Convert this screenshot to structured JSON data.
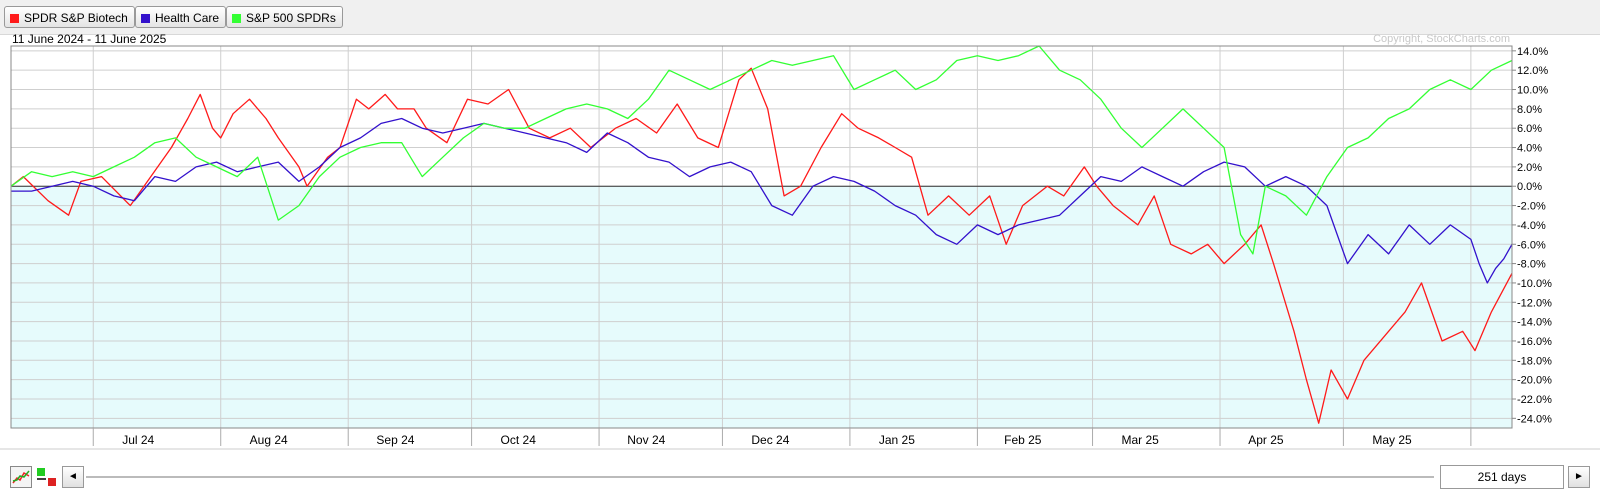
{
  "legend": [
    {
      "name": "SPDR S&P Biotech",
      "color": "#ff1a1a"
    },
    {
      "name": "Health Care",
      "color": "#3311cc"
    },
    {
      "name": "S&P 500 SPDRs",
      "color": "#33ff33"
    }
  ],
  "header": {
    "date_range": "11 June 2024 - 11 June 2025",
    "copyright": "Copyright, StockCharts.com"
  },
  "footer": {
    "days_label": "251 days",
    "scroll_left": "◄",
    "scroll_right": "►"
  },
  "icons": {
    "performance_tool": "performance-chart-icon",
    "color_tool": "color-legend-icon"
  },
  "chart_data": {
    "type": "line",
    "xlabel": "",
    "ylabel": "",
    "y_unit": "%",
    "ylim": [
      -25,
      14.5
    ],
    "y_ticks": [
      "14.0%",
      "12.0%",
      "10.0%",
      "8.0%",
      "6.0%",
      "4.0%",
      "2.0%",
      "0.0%",
      "-2.0%",
      "-4.0%",
      "-6.0%",
      "-8.0%",
      "-10.0%",
      "-12.0%",
      "-14.0%",
      "-16.0%",
      "-18.0%",
      "-20.0%",
      "-22.0%",
      "-24.0%"
    ],
    "x_months": [
      "Jul 24",
      "Aug 24",
      "Sep 24",
      "Oct 24",
      "Nov 24",
      "Dec 24",
      "Jan 25",
      "Feb 25",
      "Mar 25",
      "Apr 25",
      "May 25"
    ],
    "grid": true,
    "baseline": 0,
    "trading_days": 251,
    "series": [
      {
        "name": "SPDR S&P Biotech",
        "color": "#ff1a1a",
        "points": [
          [
            "2024-06-11",
            0
          ],
          [
            "2024-06-14",
            1
          ],
          [
            "2024-06-20",
            -1.5
          ],
          [
            "2024-06-25",
            -3
          ],
          [
            "2024-06-28",
            0.5
          ],
          [
            "2024-07-03",
            1
          ],
          [
            "2024-07-10",
            -2
          ],
          [
            "2024-07-15",
            1
          ],
          [
            "2024-07-20",
            4
          ],
          [
            "2024-07-24",
            7
          ],
          [
            "2024-07-27",
            9.5
          ],
          [
            "2024-07-30",
            6
          ],
          [
            "2024-08-01",
            5
          ],
          [
            "2024-08-04",
            7.5
          ],
          [
            "2024-08-08",
            9
          ],
          [
            "2024-08-12",
            7
          ],
          [
            "2024-08-15",
            5
          ],
          [
            "2024-08-20",
            2
          ],
          [
            "2024-08-22",
            0
          ],
          [
            "2024-08-27",
            3
          ],
          [
            "2024-08-30",
            4
          ],
          [
            "2024-09-03",
            9
          ],
          [
            "2024-09-06",
            8
          ],
          [
            "2024-09-10",
            9.5
          ],
          [
            "2024-09-13",
            8
          ],
          [
            "2024-09-17",
            8
          ],
          [
            "2024-09-20",
            6
          ],
          [
            "2024-09-25",
            4.5
          ],
          [
            "2024-09-30",
            9
          ],
          [
            "2024-10-05",
            8.5
          ],
          [
            "2024-10-10",
            10
          ],
          [
            "2024-10-15",
            6
          ],
          [
            "2024-10-20",
            5
          ],
          [
            "2024-10-25",
            6
          ],
          [
            "2024-10-30",
            4
          ],
          [
            "2024-11-05",
            6
          ],
          [
            "2024-11-10",
            7
          ],
          [
            "2024-11-15",
            5.5
          ],
          [
            "2024-11-20",
            8.5
          ],
          [
            "2024-11-25",
            5
          ],
          [
            "2024-11-30",
            4
          ],
          [
            "2024-12-05",
            11
          ],
          [
            "2024-12-08",
            12.2
          ],
          [
            "2024-12-12",
            8
          ],
          [
            "2024-12-16",
            -1
          ],
          [
            "2024-12-20",
            0
          ],
          [
            "2024-12-25",
            4
          ],
          [
            "2024-12-30",
            7.5
          ],
          [
            "2025-01-03",
            6
          ],
          [
            "2025-01-08",
            5
          ],
          [
            "2025-01-12",
            4
          ],
          [
            "2025-01-16",
            3
          ],
          [
            "2025-01-20",
            -3
          ],
          [
            "2025-01-25",
            -1
          ],
          [
            "2025-01-30",
            -3
          ],
          [
            "2025-02-04",
            -1
          ],
          [
            "2025-02-08",
            -6
          ],
          [
            "2025-02-12",
            -2
          ],
          [
            "2025-02-18",
            0
          ],
          [
            "2025-02-22",
            -1
          ],
          [
            "2025-02-27",
            2
          ],
          [
            "2025-03-02",
            0
          ],
          [
            "2025-03-06",
            -2
          ],
          [
            "2025-03-12",
            -4
          ],
          [
            "2025-03-16",
            -1
          ],
          [
            "2025-03-20",
            -6
          ],
          [
            "2025-03-25",
            -7
          ],
          [
            "2025-03-29",
            -6
          ],
          [
            "2025-04-02",
            -8
          ],
          [
            "2025-04-07",
            -6
          ],
          [
            "2025-04-11",
            -4
          ],
          [
            "2025-04-14",
            -8
          ],
          [
            "2025-04-19",
            -15
          ],
          [
            "2025-04-22",
            -20
          ],
          [
            "2025-04-25",
            -24.5
          ],
          [
            "2025-04-28",
            -19
          ],
          [
            "2025-05-02",
            -22
          ],
          [
            "2025-05-06",
            -18
          ],
          [
            "2025-05-12",
            -15
          ],
          [
            "2025-05-16",
            -13
          ],
          [
            "2025-05-20",
            -10
          ],
          [
            "2025-05-25",
            -16
          ],
          [
            "2025-05-30",
            -15
          ],
          [
            "2025-06-02",
            -17
          ],
          [
            "2025-06-06",
            -13
          ],
          [
            "2025-06-11",
            -9
          ]
        ]
      },
      {
        "name": "Health Care",
        "color": "#3311cc",
        "points": [
          [
            "2024-06-11",
            -0.5
          ],
          [
            "2024-06-16",
            -0.5
          ],
          [
            "2024-06-21",
            0
          ],
          [
            "2024-06-26",
            0.5
          ],
          [
            "2024-07-01",
            0
          ],
          [
            "2024-07-06",
            -1
          ],
          [
            "2024-07-11",
            -1.5
          ],
          [
            "2024-07-16",
            1
          ],
          [
            "2024-07-21",
            0.5
          ],
          [
            "2024-07-26",
            2
          ],
          [
            "2024-07-31",
            2.5
          ],
          [
            "2024-08-05",
            1.5
          ],
          [
            "2024-08-10",
            2
          ],
          [
            "2024-08-15",
            2.5
          ],
          [
            "2024-08-20",
            0.5
          ],
          [
            "2024-08-25",
            2
          ],
          [
            "2024-08-30",
            4
          ],
          [
            "2024-09-04",
            5
          ],
          [
            "2024-09-09",
            6.5
          ],
          [
            "2024-09-14",
            7
          ],
          [
            "2024-09-19",
            6
          ],
          [
            "2024-09-24",
            5.5
          ],
          [
            "2024-09-29",
            6
          ],
          [
            "2024-10-04",
            6.5
          ],
          [
            "2024-10-09",
            6
          ],
          [
            "2024-10-14",
            5.5
          ],
          [
            "2024-10-19",
            5
          ],
          [
            "2024-10-24",
            4.5
          ],
          [
            "2024-10-29",
            3.5
          ],
          [
            "2024-11-03",
            5.5
          ],
          [
            "2024-11-08",
            4.5
          ],
          [
            "2024-11-13",
            3
          ],
          [
            "2024-11-18",
            2.5
          ],
          [
            "2024-11-23",
            1
          ],
          [
            "2024-11-28",
            2
          ],
          [
            "2024-12-03",
            2.5
          ],
          [
            "2024-12-08",
            1.5
          ],
          [
            "2024-12-13",
            -2
          ],
          [
            "2024-12-18",
            -3
          ],
          [
            "2024-12-23",
            0
          ],
          [
            "2024-12-28",
            1
          ],
          [
            "2025-01-02",
            0.5
          ],
          [
            "2025-01-07",
            -0.5
          ],
          [
            "2025-01-12",
            -2
          ],
          [
            "2025-01-17",
            -3
          ],
          [
            "2025-01-22",
            -5
          ],
          [
            "2025-01-27",
            -6
          ],
          [
            "2025-02-01",
            -4
          ],
          [
            "2025-02-06",
            -5
          ],
          [
            "2025-02-11",
            -4
          ],
          [
            "2025-02-16",
            -3.5
          ],
          [
            "2025-02-21",
            -3
          ],
          [
            "2025-02-26",
            -1
          ],
          [
            "2025-03-03",
            1
          ],
          [
            "2025-03-08",
            0.5
          ],
          [
            "2025-03-13",
            2
          ],
          [
            "2025-03-18",
            1
          ],
          [
            "2025-03-23",
            0
          ],
          [
            "2025-03-28",
            1.5
          ],
          [
            "2025-04-02",
            2.5
          ],
          [
            "2025-04-07",
            2
          ],
          [
            "2025-04-12",
            0
          ],
          [
            "2025-04-17",
            1
          ],
          [
            "2025-04-22",
            0
          ],
          [
            "2025-04-27",
            -2
          ],
          [
            "2025-05-02",
            -8
          ],
          [
            "2025-05-07",
            -5
          ],
          [
            "2025-05-12",
            -7
          ],
          [
            "2025-05-17",
            -4
          ],
          [
            "2025-05-22",
            -6
          ],
          [
            "2025-05-27",
            -4
          ],
          [
            "2025-06-01",
            -5.5
          ],
          [
            "2025-06-03",
            -8
          ],
          [
            "2025-06-05",
            -10
          ],
          [
            "2025-06-07",
            -8.5
          ],
          [
            "2025-06-09",
            -7.5
          ],
          [
            "2025-06-11",
            -6
          ]
        ]
      },
      {
        "name": "S&P 500 SPDRs",
        "color": "#33ff33",
        "points": [
          [
            "2024-06-11",
            0
          ],
          [
            "2024-06-16",
            1.5
          ],
          [
            "2024-06-21",
            1
          ],
          [
            "2024-06-26",
            1.5
          ],
          [
            "2024-07-01",
            1
          ],
          [
            "2024-07-06",
            2
          ],
          [
            "2024-07-11",
            3
          ],
          [
            "2024-07-16",
            4.5
          ],
          [
            "2024-07-21",
            5
          ],
          [
            "2024-07-26",
            3
          ],
          [
            "2024-07-31",
            2
          ],
          [
            "2024-08-05",
            1
          ],
          [
            "2024-08-10",
            3
          ],
          [
            "2024-08-15",
            -3.5
          ],
          [
            "2024-08-20",
            -2
          ],
          [
            "2024-08-25",
            1
          ],
          [
            "2024-08-30",
            3
          ],
          [
            "2024-09-04",
            4
          ],
          [
            "2024-09-09",
            4.5
          ],
          [
            "2024-09-14",
            4.5
          ],
          [
            "2024-09-19",
            1
          ],
          [
            "2024-09-24",
            3
          ],
          [
            "2024-09-29",
            5
          ],
          [
            "2024-10-04",
            6.5
          ],
          [
            "2024-10-09",
            6
          ],
          [
            "2024-10-14",
            6
          ],
          [
            "2024-10-19",
            7
          ],
          [
            "2024-10-24",
            8
          ],
          [
            "2024-10-29",
            8.5
          ],
          [
            "2024-11-03",
            8
          ],
          [
            "2024-11-08",
            7
          ],
          [
            "2024-11-13",
            9
          ],
          [
            "2024-11-18",
            12
          ],
          [
            "2024-11-23",
            11
          ],
          [
            "2024-11-28",
            10
          ],
          [
            "2024-12-03",
            11
          ],
          [
            "2024-12-08",
            12
          ],
          [
            "2024-12-13",
            13
          ],
          [
            "2024-12-18",
            12.5
          ],
          [
            "2024-12-23",
            13
          ],
          [
            "2024-12-28",
            13.5
          ],
          [
            "2025-01-02",
            10
          ],
          [
            "2025-01-07",
            11
          ],
          [
            "2025-01-12",
            12
          ],
          [
            "2025-01-17",
            10
          ],
          [
            "2025-01-22",
            11
          ],
          [
            "2025-01-27",
            13
          ],
          [
            "2025-02-01",
            13.5
          ],
          [
            "2025-02-06",
            13
          ],
          [
            "2025-02-11",
            13.5
          ],
          [
            "2025-02-16",
            14.5
          ],
          [
            "2025-02-21",
            12
          ],
          [
            "2025-02-26",
            11
          ],
          [
            "2025-03-03",
            9
          ],
          [
            "2025-03-08",
            6
          ],
          [
            "2025-03-13",
            4
          ],
          [
            "2025-03-18",
            6
          ],
          [
            "2025-03-23",
            8
          ],
          [
            "2025-03-28",
            6
          ],
          [
            "2025-04-02",
            4
          ],
          [
            "2025-04-06",
            -5
          ],
          [
            "2025-04-09",
            -7
          ],
          [
            "2025-04-12",
            0
          ],
          [
            "2025-04-17",
            -1
          ],
          [
            "2025-04-22",
            -3
          ],
          [
            "2025-04-27",
            1
          ],
          [
            "2025-05-02",
            4
          ],
          [
            "2025-05-07",
            5
          ],
          [
            "2025-05-12",
            7
          ],
          [
            "2025-05-17",
            8
          ],
          [
            "2025-05-22",
            10
          ],
          [
            "2025-05-27",
            11
          ],
          [
            "2025-06-01",
            10
          ],
          [
            "2025-06-06",
            12
          ],
          [
            "2025-06-11",
            13
          ]
        ]
      }
    ]
  }
}
